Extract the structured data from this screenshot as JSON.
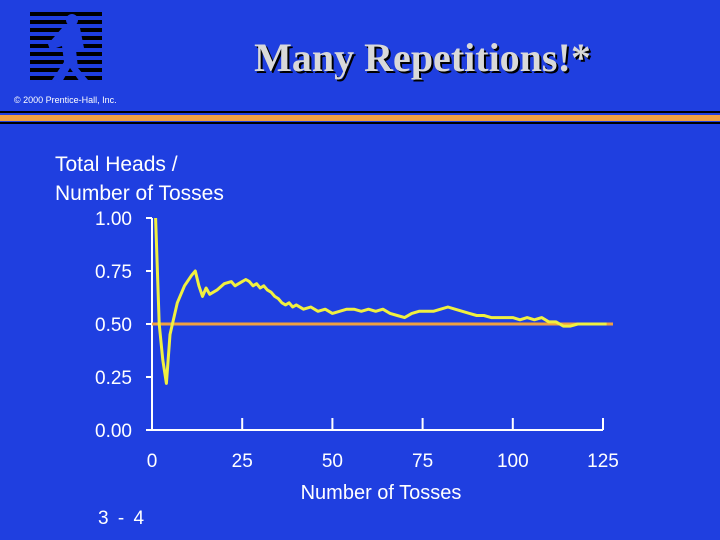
{
  "slide": {
    "title": "Many Repetitions!*",
    "copyright": "© 2000 Prentice-Hall, Inc.",
    "slide_number": "3 - 4",
    "logo_icon": "running-man-logo"
  },
  "colors": {
    "background": "#1f3fe0",
    "series_line": "#f0f040",
    "reference_line": "#f0a040",
    "axis": "#ffffff"
  },
  "chart_data": {
    "type": "line",
    "ylabel_lines": [
      "Total Heads /",
      "Number of Tosses"
    ],
    "xlabel": "Number of Tosses",
    "xlim": [
      0,
      125
    ],
    "ylim": [
      0,
      1
    ],
    "x_ticks": [
      "0",
      "25",
      "50",
      "75",
      "100",
      "125"
    ],
    "y_ticks": [
      "1.00",
      "0.75",
      "0.50",
      "0.25",
      "0.00"
    ],
    "reference_line": {
      "y": 0.5
    },
    "series": [
      {
        "x": [
          1,
          2,
          3,
          4,
          5,
          7,
          9,
          11,
          12,
          13,
          14,
          15,
          16,
          18,
          20,
          22,
          23,
          24,
          25,
          26,
          27,
          28,
          29,
          30,
          31,
          32,
          33,
          34,
          35,
          36,
          37,
          38,
          39,
          40,
          42,
          44,
          46,
          48,
          50,
          52,
          54,
          56,
          58,
          60,
          62,
          64,
          66,
          68,
          70,
          72,
          74,
          76,
          78,
          80,
          82,
          84,
          86,
          88,
          90,
          92,
          94,
          96,
          98,
          100,
          102,
          104,
          106,
          108,
          110,
          112,
          113,
          114,
          116,
          118,
          120,
          122,
          124,
          126
        ],
        "y": [
          1.0,
          0.5,
          0.33,
          0.22,
          0.45,
          0.6,
          0.68,
          0.73,
          0.75,
          0.68,
          0.63,
          0.67,
          0.64,
          0.66,
          0.69,
          0.7,
          0.68,
          0.69,
          0.7,
          0.71,
          0.7,
          0.68,
          0.69,
          0.67,
          0.68,
          0.66,
          0.65,
          0.63,
          0.62,
          0.6,
          0.59,
          0.6,
          0.58,
          0.59,
          0.57,
          0.58,
          0.56,
          0.57,
          0.55,
          0.56,
          0.57,
          0.57,
          0.56,
          0.57,
          0.56,
          0.57,
          0.55,
          0.54,
          0.53,
          0.55,
          0.56,
          0.56,
          0.56,
          0.57,
          0.58,
          0.57,
          0.56,
          0.55,
          0.54,
          0.54,
          0.53,
          0.53,
          0.53,
          0.53,
          0.52,
          0.53,
          0.52,
          0.53,
          0.51,
          0.51,
          0.5,
          0.49,
          0.49,
          0.5,
          0.5,
          0.5,
          0.5,
          0.5
        ]
      }
    ]
  }
}
